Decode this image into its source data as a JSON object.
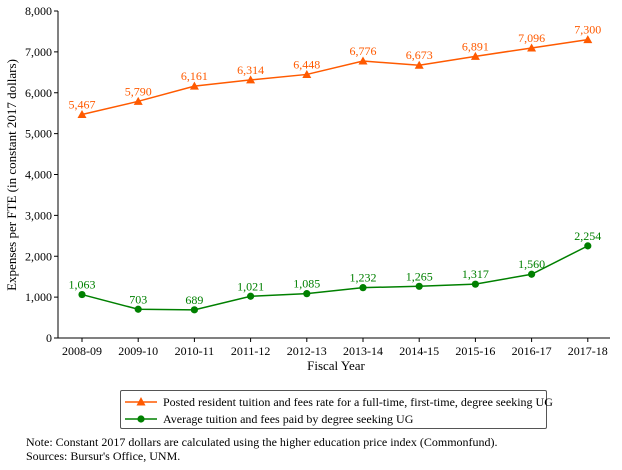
{
  "chart_data": {
    "type": "line",
    "categories": [
      "2008-09",
      "2009-10",
      "2010-11",
      "2011-12",
      "2012-13",
      "2013-14",
      "2014-15",
      "2015-16",
      "2016-17",
      "2017-18"
    ],
    "series": [
      {
        "name": "Posted resident tuition and fees rate for a full-time, first-time, degree seeking UG",
        "values": [
          5467,
          5790,
          6161,
          6314,
          6448,
          6776,
          6673,
          6891,
          7096,
          7300
        ],
        "labels": [
          "5,467",
          "5,790",
          "6,161",
          "6,314",
          "6,448",
          "6,776",
          "6,673",
          "6,891",
          "7,096",
          "7,300"
        ],
        "color": "#ff5a00",
        "marker": "triangle"
      },
      {
        "name": "Average tuition and fees paid by degree seeking UG",
        "values": [
          1063,
          703,
          689,
          1021,
          1085,
          1232,
          1265,
          1317,
          1560,
          2254
        ],
        "labels": [
          "1,063",
          "703",
          "689",
          "1,021",
          "1,085",
          "1,232",
          "1,265",
          "1,317",
          "1,560",
          "2,254"
        ],
        "color": "#008000",
        "marker": "circle"
      }
    ],
    "ylim": [
      0,
      8000
    ],
    "yticks": [
      0,
      1000,
      2000,
      3000,
      4000,
      5000,
      6000,
      7000,
      8000
    ],
    "ytick_labels": [
      "0",
      "1,000",
      "2,000",
      "3,000",
      "4,000",
      "5,000",
      "6,000",
      "7,000",
      "8,000"
    ],
    "xlabel": "Fiscal Year",
    "ylabel": "Expenses per FTE (in constant 2017 dollars)",
    "grid": false,
    "legend_position": "bottom"
  },
  "notes": {
    "line1": "Note: Constant 2017 dollars are calculated using the higher education price index (Commonfund).",
    "line2": "Sources: Bursur's Office, UNM."
  }
}
